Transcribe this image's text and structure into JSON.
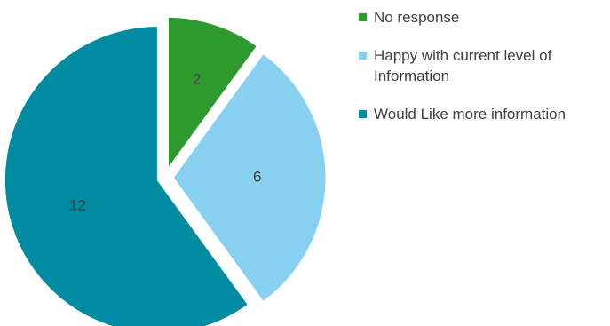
{
  "chart_data": {
    "type": "pie",
    "title": "",
    "legend_position": "right",
    "slices": [
      {
        "name": "No response",
        "value": 2,
        "label": "2",
        "color": "#2e9a2e"
      },
      {
        "name": "Happy with current level of Information",
        "value": 6,
        "label": "6",
        "color": "#87d0ef"
      },
      {
        "name": "Would Like more information",
        "value": 12,
        "label": "12",
        "color": "#008ca0"
      }
    ],
    "exploded": true
  }
}
